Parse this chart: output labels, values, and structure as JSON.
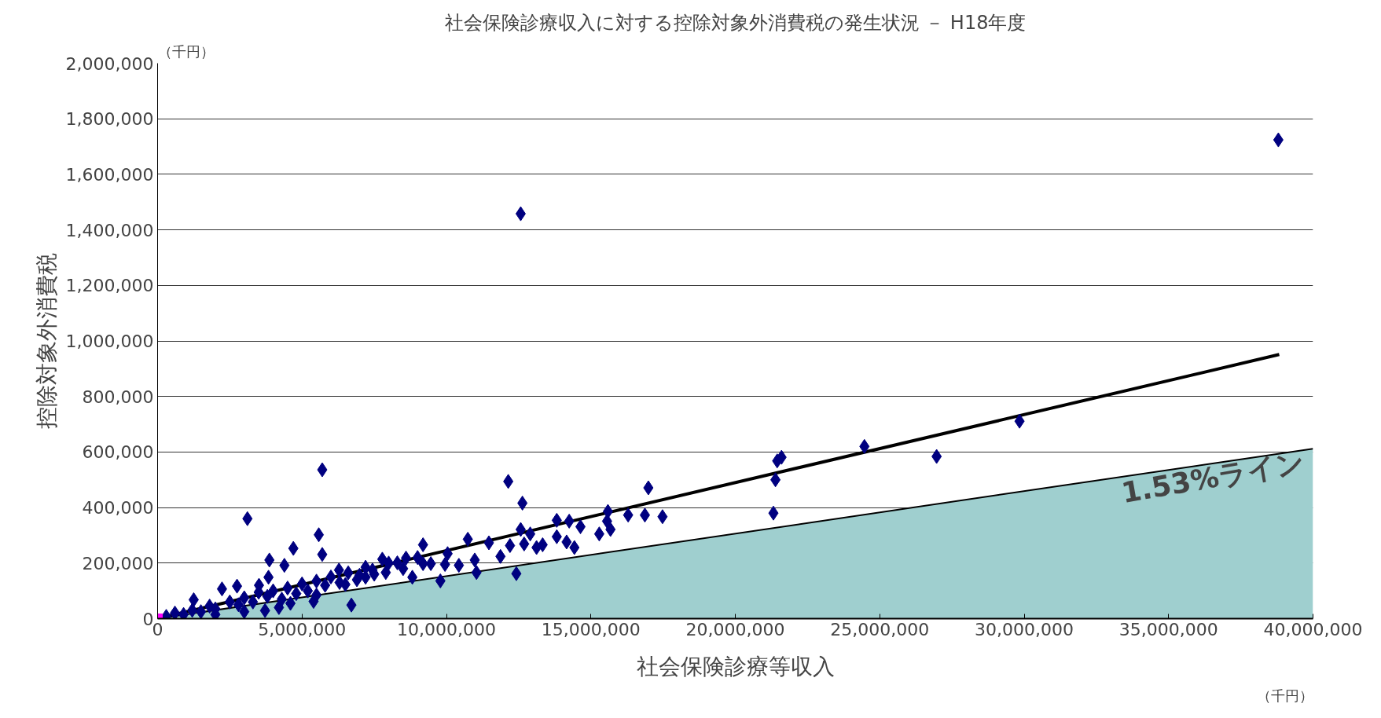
{
  "chart_data": {
    "type": "scatter",
    "title": "社会保険診療収入に対する控除対象外消費税の発生状況 － H18年度",
    "xlabel": "社会保険診療等収入",
    "ylabel": "控除対象外消費税",
    "annotations": [
      "（千円）",
      "（千円）",
      "1.53%ライン"
    ],
    "xlim": [
      0,
      40000000
    ],
    "ylim": [
      0,
      2000000
    ],
    "xticks": [
      {
        "value": 0,
        "label": "0"
      },
      {
        "value": 5000000,
        "label": "5,000,000"
      },
      {
        "value": 10000000,
        "label": "10,000,000"
      },
      {
        "value": 15000000,
        "label": "15,000,000"
      },
      {
        "value": 20000000,
        "label": "20,000,000"
      },
      {
        "value": 25000000,
        "label": "25,000,000"
      },
      {
        "value": 30000000,
        "label": "30,000,000"
      },
      {
        "value": 35000000,
        "label": "35,000,000"
      },
      {
        "value": 40000000,
        "label": "40,000,000"
      }
    ],
    "yticks": [
      {
        "value": 0,
        "label": "0"
      },
      {
        "value": 200000,
        "label": "200,000"
      },
      {
        "value": 400000,
        "label": "400,000"
      },
      {
        "value": 600000,
        "label": "600,000"
      },
      {
        "value": 800000,
        "label": "800,000"
      },
      {
        "value": 1000000,
        "label": "1,000,000"
      },
      {
        "value": 1200000,
        "label": "1,200,000"
      },
      {
        "value": 1400000,
        "label": "1,400,000"
      },
      {
        "value": 1600000,
        "label": "1,600,000"
      },
      {
        "value": 1800000,
        "label": "1,800,000"
      },
      {
        "value": 2000000,
        "label": "2,000,000"
      }
    ],
    "grid": "y",
    "series": [
      {
        "type": "area",
        "color": "#9fcfcf",
        "x": [
          0,
          40000000
        ],
        "values": [
          0,
          612000
        ]
      },
      {
        "type": "line",
        "color": "#000000",
        "x": [
          0,
          38830000
        ],
        "values": [
          0,
          951000
        ]
      },
      {
        "color": "#000080",
        "marker": "diamond",
        "x": [
          38800000,
          12570000,
          29840000,
          24470000,
          26970000,
          21600000,
          21450000,
          21390000,
          21320000,
          16990000,
          17480000,
          16870000,
          16290000,
          15590000,
          15560000,
          15680000,
          15290000,
          13820000,
          14250000,
          14640000,
          13820000,
          14160000,
          14430000,
          13330000,
          12630000,
          12140000,
          12420000,
          12570000,
          12900000,
          13120000,
          12690000,
          12200000,
          11870000,
          11470000,
          11040000,
          10740000,
          10980000,
          10430000,
          10040000,
          9950000,
          9790000,
          9460000,
          9190000,
          9190000,
          8820000,
          8600000,
          8300000,
          7900000,
          7780000,
          7440000,
          7200000,
          6990000,
          6710000,
          6500000,
          6280000,
          5700000,
          5580000,
          5700000,
          5400000,
          4700000,
          4390000,
          3870000,
          3840000,
          3110000,
          3510000,
          3720000,
          2750000,
          2230000,
          1250000,
          300000,
          600000,
          900000,
          1200000,
          1500000,
          1800000,
          2000000,
          2500000,
          2800000,
          3000000,
          3300000,
          3500000,
          3800000,
          4000000,
          4300000,
          4500000,
          4800000,
          5000000,
          5200000,
          5500000,
          5800000,
          6000000,
          6300000,
          6600000,
          6900000,
          7200000,
          7500000,
          8000000,
          8500000,
          9000000,
          4200000,
          3000000,
          2000000,
          5500000,
          4600000
        ],
        "values": [
          1724000,
          1458000,
          711000,
          620000,
          584000,
          581000,
          568000,
          500000,
          380000,
          471000,
          367000,
          373000,
          373000,
          386000,
          351000,
          321000,
          305000,
          354000,
          351000,
          331000,
          295000,
          276000,
          256000,
          266000,
          416000,
          494000,
          162000,
          321000,
          305000,
          256000,
          269000,
          263000,
          224000,
          273000,
          166000,
          286000,
          211000,
          192000,
          234000,
          195000,
          136000,
          198000,
          266000,
          198000,
          149000,
          218000,
          201000,
          166000,
          214000,
          175000,
          149000,
          156000,
          49000,
          123000,
          175000,
          536000,
          302000,
          231000,
          62000,
          253000,
          192000,
          211000,
          149000,
          360000,
          120000,
          29000,
          117000,
          107000,
          68000,
          8000,
          20000,
          15000,
          30000,
          25000,
          45000,
          35000,
          60000,
          50000,
          75000,
          60000,
          95000,
          80000,
          100000,
          70000,
          110000,
          90000,
          125000,
          100000,
          135000,
          120000,
          150000,
          130000,
          165000,
          140000,
          185000,
          160000,
          200000,
          180000,
          220000,
          40000,
          25000,
          15000,
          85000,
          55000
        ]
      },
      {
        "color": "#ff00ff",
        "marker": "square",
        "x": [
          0
        ],
        "values": [
          0
        ]
      }
    ]
  }
}
